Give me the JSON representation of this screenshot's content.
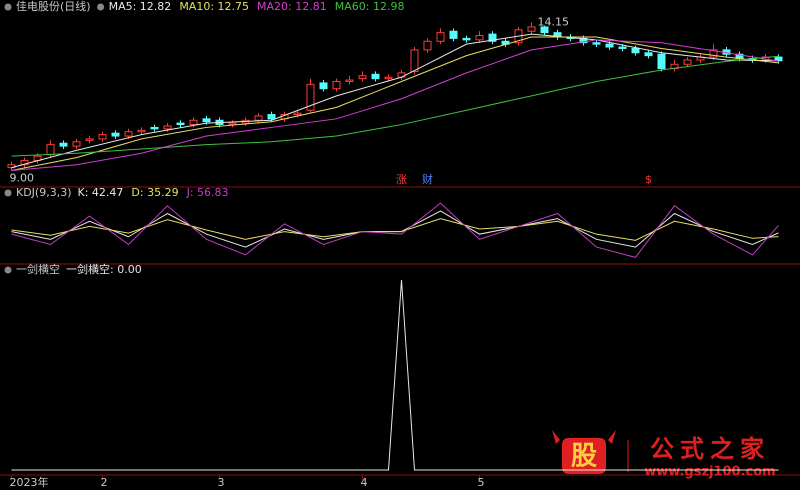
{
  "chart_data": [
    {
      "type": "candlestick",
      "title": "佳电股份(日线)",
      "ylim": [
        8.6,
        14.45
      ],
      "up_color": "#ff3c3c",
      "down_color": "#54fcfc",
      "open": [
        9.1,
        9.2,
        9.35,
        9.55,
        9.95,
        9.85,
        10.05,
        10.1,
        10.3,
        10.2,
        10.35,
        10.5,
        10.45,
        10.65,
        10.6,
        10.8,
        10.75,
        10.6,
        10.65,
        10.75,
        10.95,
        10.8,
        10.95,
        11.1,
        12.05,
        11.85,
        12.1,
        12.2,
        12.35,
        12.2,
        12.25,
        12.45,
        13.2,
        13.5,
        13.85,
        13.6,
        13.55,
        13.75,
        13.5,
        13.45,
        13.85,
        14.0,
        13.8,
        13.65,
        13.6,
        13.45,
        13.4,
        13.3,
        13.25,
        13.1,
        13.05,
        12.55,
        12.7,
        12.85,
        12.95,
        13.2,
        13.05,
        12.9,
        12.85,
        12.95
      ],
      "high": [
        9.3,
        9.45,
        9.6,
        10.05,
        10.05,
        10.1,
        10.2,
        10.35,
        10.4,
        10.45,
        10.5,
        10.6,
        10.65,
        10.75,
        10.85,
        10.9,
        10.85,
        10.75,
        10.85,
        11.0,
        11.05,
        11.05,
        11.1,
        12.2,
        12.15,
        12.2,
        12.3,
        12.45,
        12.45,
        12.35,
        12.5,
        13.3,
        13.6,
        13.95,
        13.95,
        13.7,
        13.85,
        13.85,
        13.6,
        14.0,
        14.15,
        14.05,
        13.9,
        13.75,
        13.7,
        13.55,
        13.5,
        13.4,
        13.35,
        13.2,
        13.15,
        12.85,
        12.95,
        13.05,
        13.4,
        13.3,
        13.15,
        13.0,
        13.05,
        13.05
      ],
      "low": [
        9.0,
        9.1,
        9.25,
        9.45,
        9.75,
        9.75,
        9.95,
        10.0,
        10.1,
        10.1,
        10.25,
        10.35,
        10.35,
        10.5,
        10.5,
        10.6,
        10.5,
        10.5,
        10.55,
        10.65,
        10.7,
        10.7,
        10.85,
        11.0,
        11.75,
        11.75,
        12.0,
        12.1,
        12.1,
        12.1,
        12.15,
        12.35,
        13.1,
        13.4,
        13.5,
        13.45,
        13.45,
        13.4,
        13.3,
        13.35,
        13.75,
        13.7,
        13.55,
        13.5,
        13.35,
        13.3,
        13.2,
        13.15,
        13.0,
        12.9,
        12.45,
        12.45,
        12.6,
        12.75,
        12.85,
        12.95,
        12.8,
        12.75,
        12.75,
        12.72
      ],
      "close": [
        9.2,
        9.35,
        9.5,
        9.9,
        9.85,
        10.0,
        10.1,
        10.25,
        10.2,
        10.35,
        10.4,
        10.45,
        10.55,
        10.6,
        10.75,
        10.7,
        10.6,
        10.65,
        10.75,
        10.9,
        10.8,
        10.95,
        11.0,
        12.0,
        11.85,
        12.1,
        12.15,
        12.3,
        12.2,
        12.25,
        12.4,
        13.2,
        13.5,
        13.8,
        13.6,
        13.55,
        13.7,
        13.5,
        13.4,
        13.9,
        14.0,
        13.8,
        13.65,
        13.6,
        13.45,
        13.4,
        13.3,
        13.25,
        13.1,
        13.0,
        12.55,
        12.7,
        12.85,
        12.95,
        13.2,
        13.05,
        12.9,
        12.85,
        12.95,
        12.82
      ],
      "series": [
        {
          "name": "MA5: 12.82",
          "color": "#e8e8e8",
          "x": [
            0,
            5,
            10,
            15,
            20,
            25,
            30,
            35,
            40,
            45,
            50,
            55,
            59
          ],
          "values": [
            9.1,
            9.7,
            10.25,
            10.65,
            10.75,
            11.6,
            12.25,
            13.4,
            13.75,
            13.55,
            13.1,
            12.85,
            12.82
          ]
        },
        {
          "name": "MA10: 12.75",
          "color": "#e8e060",
          "x": [
            0,
            5,
            10,
            15,
            20,
            25,
            30,
            35,
            40,
            45,
            50,
            55,
            59
          ],
          "values": [
            9.0,
            9.45,
            10.1,
            10.5,
            10.7,
            11.2,
            12.1,
            13.0,
            13.65,
            13.65,
            13.25,
            12.95,
            12.75
          ]
        },
        {
          "name": "MA20: 12.81",
          "color": "#d040d0",
          "x": [
            0,
            5,
            10,
            15,
            20,
            25,
            30,
            35,
            40,
            45,
            50,
            55,
            59
          ],
          "values": [
            9.0,
            9.2,
            9.6,
            10.2,
            10.5,
            10.8,
            11.5,
            12.4,
            13.2,
            13.55,
            13.45,
            13.1,
            12.81
          ]
        },
        {
          "name": "MA60: 12.98",
          "color": "#40c040",
          "x": [
            0,
            5,
            10,
            15,
            20,
            25,
            30,
            35,
            40,
            45,
            50,
            55,
            59
          ],
          "values": [
            9.5,
            9.6,
            9.75,
            9.9,
            10.0,
            10.2,
            10.6,
            11.1,
            11.6,
            12.1,
            12.5,
            12.8,
            12.98
          ]
        }
      ],
      "annotations": [
        {
          "text": "14.15",
          "index": 40,
          "value": 14.15,
          "color": "#cccccc"
        },
        {
          "text": "9.00",
          "index": 0,
          "value": 9.0,
          "color": "#cccccc"
        }
      ],
      "markers": [
        {
          "text": "涨",
          "index": 30,
          "color": "#ff3c3c"
        },
        {
          "text": "财",
          "index": 32,
          "color": "#5080ff"
        },
        {
          "text": "$",
          "index": 49,
          "color": "#ff3c3c"
        }
      ]
    },
    {
      "type": "line",
      "title": "KDJ(9,3,3)",
      "ylim": [
        -10,
        110
      ],
      "x": [
        0,
        3,
        6,
        9,
        12,
        15,
        18,
        21,
        24,
        27,
        30,
        33,
        36,
        39,
        42,
        45,
        48,
        51,
        54,
        57,
        59
      ],
      "series": [
        {
          "name": "K: 42.47",
          "color": "#e8e8e8",
          "values": [
            45,
            30,
            65,
            35,
            80,
            40,
            15,
            50,
            30,
            45,
            45,
            85,
            40,
            55,
            70,
            30,
            15,
            80,
            45,
            20,
            42.47
          ]
        },
        {
          "name": "D: 35.29",
          "color": "#e8e060",
          "values": [
            48,
            38,
            55,
            42,
            68,
            48,
            30,
            45,
            35,
            45,
            45,
            70,
            50,
            55,
            65,
            40,
            28,
            65,
            50,
            32,
            35.29
          ]
        },
        {
          "name": "J: 56.83",
          "color": "#c040c0",
          "values": [
            40,
            20,
            75,
            20,
            95,
            30,
            0,
            60,
            20,
            45,
            40,
            100,
            30,
            55,
            80,
            15,
            -5,
            95,
            40,
            0,
            56.83
          ]
        }
      ]
    },
    {
      "type": "line",
      "title": "一剑横空",
      "ylim": [
        0,
        1
      ],
      "x": [
        0,
        29,
        30,
        31,
        59
      ],
      "xticks": [
        {
          "value": 0,
          "label": "2023年"
        },
        {
          "value": 7,
          "label": "2"
        },
        {
          "value": 16,
          "label": "3"
        },
        {
          "value": 27,
          "label": "4"
        },
        {
          "value": 36,
          "label": "5"
        }
      ],
      "series": [
        {
          "name": "一剑横空: 0.00",
          "color": "#e8e8e8",
          "values": [
            0,
            0,
            1,
            0,
            0
          ]
        }
      ]
    }
  ],
  "watermark": {
    "logo": "股",
    "name": "公式之家",
    "url": "www.gszj100.com"
  }
}
